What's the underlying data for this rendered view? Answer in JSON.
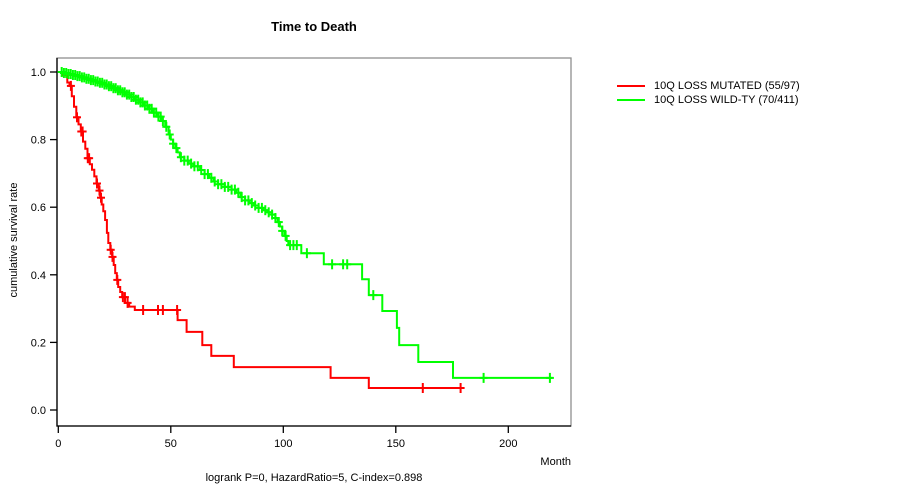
{
  "title": "Time to Death",
  "caption": "logrank P=0, HazardRatio=5, C-index=0.898",
  "axes": {
    "xlabel": "Month",
    "ylabel": "cumulative survival rate",
    "xticks": [
      "0",
      "50",
      "100",
      "150",
      "200"
    ],
    "xtick_values": [
      0,
      50,
      100,
      150,
      200
    ],
    "yticks": [
      "0.0",
      "0.2",
      "0.4",
      "0.6",
      "0.8",
      "1.0"
    ],
    "ytick_values": [
      0.0,
      0.2,
      0.4,
      0.6,
      0.8,
      1.0
    ]
  },
  "chart_data": {
    "type": "line",
    "subtype": "kaplan-meier-step-survival",
    "title": "Time to Death",
    "xlabel": "Month",
    "ylabel": "cumulative survival rate",
    "xlim": [
      0,
      228
    ],
    "ylim": [
      0.0,
      1.0
    ],
    "grid": false,
    "legend_position": "right-outside",
    "annotation": "logrank P=0, HazardRatio=5, C-index=0.898",
    "series": [
      {
        "name": "10Q LOSS MUTATED (55/97)",
        "color": "#ff0000",
        "end_month": 179.3,
        "steps": [
          [
            0,
            1.0
          ],
          [
            2,
            0.99
          ],
          [
            4,
            0.969
          ],
          [
            5,
            0.959
          ],
          [
            6,
            0.928
          ],
          [
            7,
            0.897
          ],
          [
            8,
            0.866
          ],
          [
            9,
            0.845
          ],
          [
            10,
            0.824
          ],
          [
            11,
            0.794
          ],
          [
            12,
            0.773
          ],
          [
            13,
            0.745
          ],
          [
            14,
            0.727
          ],
          [
            15,
            0.711
          ],
          [
            16,
            0.691
          ],
          [
            17,
            0.67
          ],
          [
            18,
            0.649
          ],
          [
            18.6,
            0.628
          ],
          [
            19.3,
            0.608
          ],
          [
            20,
            0.588
          ],
          [
            20.8,
            0.562
          ],
          [
            21.6,
            0.524
          ],
          [
            22.2,
            0.494
          ],
          [
            23.1,
            0.474
          ],
          [
            23.9,
            0.453
          ],
          [
            24.6,
            0.429
          ],
          [
            25.3,
            0.405
          ],
          [
            26,
            0.385
          ],
          [
            26.6,
            0.364
          ],
          [
            27.5,
            0.349
          ],
          [
            28.4,
            0.334
          ],
          [
            29.7,
            0.317
          ],
          [
            31.5,
            0.306
          ],
          [
            34,
            0.296
          ],
          [
            53,
            0.266
          ],
          [
            57,
            0.231
          ],
          [
            64,
            0.192
          ],
          [
            68,
            0.16
          ],
          [
            78,
            0.127
          ],
          [
            121,
            0.095
          ],
          [
            138,
            0.065
          ]
        ],
        "censor_months": [
          5.6,
          8.3,
          10.2,
          10.8,
          13.1,
          13.7,
          17.2,
          18.3,
          19.0,
          23.3,
          24.1,
          26.2,
          28.7,
          29.6,
          30.8,
          37.7,
          44.3,
          46.5,
          52.8,
          162,
          178.8
        ]
      },
      {
        "name": "10Q LOSS WILD-TY (70/411)",
        "color": "#00ff00",
        "end_month": 219.6,
        "steps": [
          [
            0,
            1.0
          ],
          [
            2,
            0.997
          ],
          [
            4,
            0.994
          ],
          [
            6,
            0.991
          ],
          [
            8,
            0.988
          ],
          [
            10,
            0.984
          ],
          [
            12,
            0.98
          ],
          [
            14,
            0.976
          ],
          [
            16,
            0.972
          ],
          [
            18,
            0.968
          ],
          [
            20,
            0.963
          ],
          [
            22,
            0.958
          ],
          [
            24,
            0.952
          ],
          [
            26,
            0.946
          ],
          [
            28,
            0.94
          ],
          [
            30,
            0.933
          ],
          [
            32,
            0.926
          ],
          [
            34,
            0.918
          ],
          [
            36,
            0.91
          ],
          [
            38,
            0.901
          ],
          [
            40,
            0.891
          ],
          [
            42,
            0.88
          ],
          [
            44,
            0.868
          ],
          [
            46,
            0.855
          ],
          [
            47.5,
            0.838
          ],
          [
            49,
            0.815
          ],
          [
            50,
            0.8
          ],
          [
            51,
            0.788
          ],
          [
            52,
            0.775
          ],
          [
            53,
            0.762
          ],
          [
            54,
            0.748
          ],
          [
            56,
            0.738
          ],
          [
            58,
            0.729
          ],
          [
            60,
            0.721
          ],
          [
            63,
            0.71
          ],
          [
            65,
            0.698
          ],
          [
            67,
            0.687
          ],
          [
            69,
            0.676
          ],
          [
            71,
            0.668
          ],
          [
            74,
            0.66
          ],
          [
            77,
            0.652
          ],
          [
            79,
            0.643
          ],
          [
            81,
            0.63
          ],
          [
            83,
            0.62
          ],
          [
            85,
            0.612
          ],
          [
            87,
            0.605
          ],
          [
            89,
            0.598
          ],
          [
            91,
            0.591
          ],
          [
            93,
            0.585
          ],
          [
            95,
            0.578
          ],
          [
            96.5,
            0.568
          ],
          [
            97.5,
            0.556
          ],
          [
            98.5,
            0.543
          ],
          [
            99.5,
            0.53
          ],
          [
            100.5,
            0.515
          ],
          [
            101.5,
            0.5
          ],
          [
            102.2,
            0.488
          ],
          [
            108,
            0.464
          ],
          [
            118,
            0.431
          ],
          [
            135,
            0.387
          ],
          [
            138,
            0.34
          ],
          [
            144,
            0.293
          ],
          [
            150.5,
            0.243
          ],
          [
            151.5,
            0.192
          ],
          [
            160,
            0.142
          ],
          [
            175.4,
            0.095
          ]
        ],
        "censor_months": [
          1.5,
          2.5,
          3.5,
          4.5,
          5.5,
          6.5,
          7.5,
          8.5,
          9.5,
          10.5,
          11.5,
          12.5,
          13.5,
          14.5,
          15.5,
          16.5,
          17.5,
          18.5,
          19.5,
          20.5,
          21.5,
          22.5,
          23.5,
          24.5,
          25.5,
          26.5,
          27.5,
          28.5,
          29.5,
          30.5,
          31.5,
          32.5,
          33.5,
          34.5,
          35.5,
          36.5,
          37.5,
          38.5,
          39.5,
          40.5,
          41.5,
          42.5,
          43.5,
          44.5,
          45.5,
          46.5,
          48,
          49.5,
          51,
          52.5,
          54.5,
          56,
          57.5,
          59,
          60.5,
          62,
          63.5,
          65,
          66.5,
          68,
          69.5,
          71,
          72.5,
          74,
          75.5,
          77,
          78.5,
          80,
          81.5,
          83,
          84.5,
          86,
          87.5,
          89,
          90.5,
          92,
          93.5,
          95,
          96.5,
          98,
          99.5,
          101,
          103,
          104.5,
          106,
          110.5,
          121.7,
          126.6,
          128.4,
          140,
          189,
          218.5
        ]
      }
    ]
  }
}
